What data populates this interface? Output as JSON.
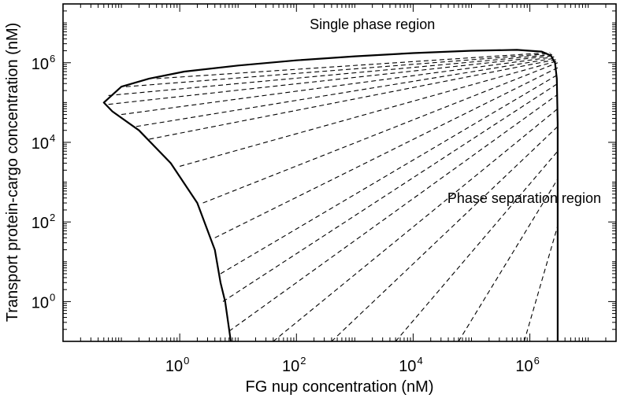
{
  "chart_data": {
    "type": "line",
    "xlabel": "FG nup concentration (nM)",
    "ylabel": "Transport protein-cargo concentration (nM)",
    "xscale": "log",
    "yscale": "log",
    "xlim": [
      0.01,
      30000000
    ],
    "ylim": [
      0.1,
      30000000
    ],
    "x_ticks": [
      {
        "base": "10",
        "exp": "0",
        "value": 1
      },
      {
        "base": "10",
        "exp": "2",
        "value": 100
      },
      {
        "base": "10",
        "exp": "4",
        "value": 10000
      },
      {
        "base": "10",
        "exp": "6",
        "value": 1000000
      }
    ],
    "y_ticks": [
      {
        "base": "10",
        "exp": "0",
        "value": 1
      },
      {
        "base": "10",
        "exp": "2",
        "value": 100
      },
      {
        "base": "10",
        "exp": "4",
        "value": 10000
      },
      {
        "base": "10",
        "exp": "6",
        "value": 1000000
      }
    ],
    "grid": false,
    "annotations": [
      {
        "text": "Single phase region",
        "x": 2000,
        "y": 7000000
      },
      {
        "text": "Phase separation region",
        "x": 800000,
        "y": 300
      }
    ],
    "series": [
      {
        "kind": "phase-boundary",
        "style": "solid",
        "points": [
          [
            3000000,
            0.1
          ],
          [
            3000000,
            100
          ],
          [
            3000000,
            30000
          ],
          [
            2900000,
            400000
          ],
          [
            2700000,
            1000000
          ],
          [
            2300000,
            1500000
          ],
          [
            1600000,
            1900000
          ],
          [
            600000,
            2100000
          ],
          [
            100000,
            2000000
          ],
          [
            10000,
            1750000
          ],
          [
            1000,
            1450000
          ],
          [
            100,
            1150000
          ],
          [
            10,
            850000
          ],
          [
            1.2,
            600000
          ],
          [
            0.3,
            400000
          ],
          [
            0.1,
            250000
          ],
          [
            0.05,
            100000
          ],
          [
            0.07,
            60000
          ],
          [
            0.2,
            20000
          ],
          [
            0.7,
            3000
          ],
          [
            2,
            300
          ],
          [
            4,
            20
          ],
          [
            5,
            3
          ],
          [
            6,
            1
          ],
          [
            7.5,
            0.1
          ]
        ]
      },
      {
        "kind": "tie-lines",
        "style": "dashed",
        "lines": [
          [
            [
              0.4,
              400000
            ],
            [
              2200000,
              1800000
            ]
          ],
          [
            [
              0.12,
              250000
            ],
            [
              2300000,
              1700000
            ]
          ],
          [
            [
              0.06,
              150000
            ],
            [
              2400000,
              1600000
            ]
          ],
          [
            [
              0.06,
              90000
            ],
            [
              2500000,
              1500000
            ]
          ],
          [
            [
              0.1,
              50000
            ],
            [
              2600000,
              1400000
            ]
          ],
          [
            [
              0.18,
              25000
            ],
            [
              2700000,
              1300000
            ]
          ],
          [
            [
              0.3,
              12000
            ],
            [
              2800000,
              1200000
            ]
          ],
          [
            [
              1,
              2500
            ],
            [
              2900000,
              1100000
            ]
          ],
          [
            [
              2.5,
              300
            ],
            [
              3000000,
              1000000
            ]
          ],
          [
            [
              4,
              40
            ],
            [
              3000000,
              750000
            ]
          ],
          [
            [
              5,
              5
            ],
            [
              3000000,
              500000
            ]
          ],
          [
            [
              5.5,
              1
            ],
            [
              3000000,
              300000
            ]
          ],
          [
            [
              7,
              0.18
            ],
            [
              3000000,
              160000
            ]
          ],
          [
            [
              40,
              0.1
            ],
            [
              3000000,
              70000
            ]
          ],
          [
            [
              400,
              0.1
            ],
            [
              3000000,
              25000
            ]
          ],
          [
            [
              5000,
              0.1
            ],
            [
              3000000,
              6000
            ]
          ],
          [
            [
              60000,
              0.1
            ],
            [
              3000000,
              1200
            ]
          ],
          [
            [
              800000,
              0.1
            ],
            [
              3000000,
              80
            ]
          ]
        ]
      }
    ]
  }
}
